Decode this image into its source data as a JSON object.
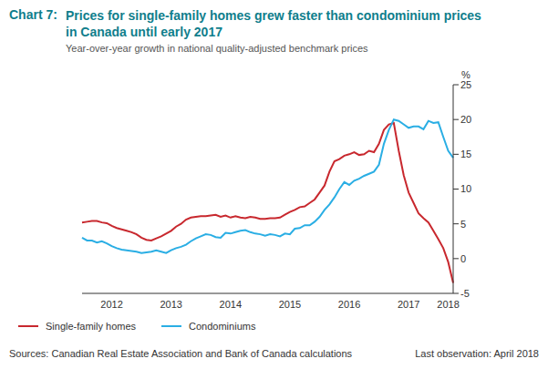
{
  "chart_data": {
    "type": "line",
    "title_label": "Chart 7:",
    "title": "Prices for single-family homes grew faster than condominium prices in Canada until early 2017",
    "subtitle": "Year-over-year growth in national quality-adjusted benchmark prices",
    "y_label": "%",
    "source": "Sources: Canadian Real Estate Association and Bank of Canada calculations",
    "note": "Last observation: April 2018",
    "categories": [
      null,
      null,
      null,
      null,
      null,
      null,
      "2012",
      null,
      null,
      null,
      null,
      null,
      null,
      null,
      null,
      null,
      null,
      null,
      "2013",
      null,
      null,
      null,
      null,
      null,
      null,
      null,
      null,
      null,
      null,
      null,
      "2014",
      null,
      null,
      null,
      null,
      null,
      null,
      null,
      null,
      null,
      null,
      null,
      "2015",
      null,
      null,
      null,
      null,
      null,
      null,
      null,
      null,
      null,
      null,
      null,
      "2016",
      null,
      null,
      null,
      null,
      null,
      null,
      null,
      null,
      null,
      null,
      null,
      "2017",
      null,
      null,
      null,
      null,
      null,
      null,
      null,
      "2018",
      null
    ],
    "series": [
      {
        "name": "Single-family homes",
        "color": "#c8282e",
        "values": [
          5.2,
          5.3,
          5.4,
          5.4,
          5.2,
          5.1,
          4.7,
          4.4,
          4.2,
          4.0,
          3.8,
          3.5,
          3.0,
          2.7,
          2.6,
          2.9,
          3.2,
          3.6,
          4.0,
          4.6,
          5.0,
          5.6,
          5.9,
          6.0,
          6.1,
          6.1,
          6.2,
          6.3,
          6.0,
          6.2,
          5.9,
          6.1,
          5.9,
          5.8,
          6.0,
          5.9,
          5.7,
          5.7,
          5.8,
          5.8,
          5.9,
          6.3,
          6.7,
          7.0,
          7.4,
          7.5,
          8.0,
          8.5,
          9.5,
          10.5,
          12.5,
          14.0,
          14.3,
          14.8,
          15.0,
          15.3,
          14.9,
          15.0,
          15.5,
          15.3,
          16.5,
          18.5,
          19.3,
          19.5,
          15.5,
          12.0,
          9.5,
          8.0,
          6.5,
          5.8,
          5.2,
          4.0,
          2.8,
          1.5,
          -0.5,
          -3.5
        ]
      },
      {
        "name": "Condominiums",
        "color": "#2aaee4",
        "values": [
          3.0,
          2.6,
          2.6,
          2.3,
          2.5,
          2.2,
          1.8,
          1.5,
          1.3,
          1.2,
          1.1,
          1.0,
          0.8,
          0.9,
          1.0,
          1.2,
          1.0,
          0.8,
          1.2,
          1.5,
          1.7,
          2.0,
          2.5,
          2.9,
          3.2,
          3.5,
          3.4,
          3.1,
          3.0,
          3.7,
          3.6,
          3.8,
          4.0,
          4.1,
          3.8,
          3.6,
          3.5,
          3.3,
          3.5,
          3.4,
          3.2,
          3.6,
          3.5,
          4.3,
          4.4,
          4.8,
          4.8,
          5.3,
          6.0,
          7.0,
          7.8,
          8.8,
          10.0,
          11.0,
          10.6,
          11.2,
          11.5,
          11.9,
          12.2,
          12.5,
          13.5,
          16.5,
          18.5,
          20.0,
          19.8,
          19.3,
          18.8,
          19.0,
          19.0,
          18.6,
          19.8,
          19.5,
          19.6,
          17.5,
          15.5,
          14.5
        ]
      }
    ],
    "ylim": [
      -5,
      25
    ],
    "yticks": [
      -5,
      0,
      5,
      10,
      15,
      20,
      25
    ],
    "grid": false
  }
}
